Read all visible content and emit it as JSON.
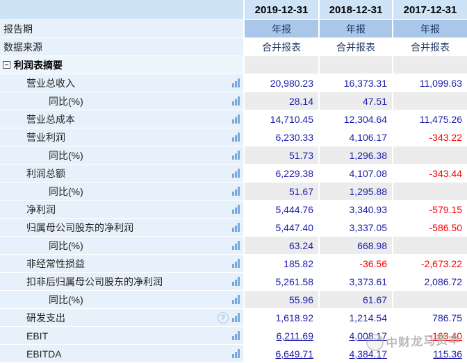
{
  "colors": {
    "header": "#cfe3f7",
    "period": "#a9c7e9",
    "label": "#e7f1fb",
    "labelsec": "#edf5fd",
    "gray": "#ececec",
    "navy": "#1c1caa",
    "red": "#fe0000",
    "dark": "#222222",
    "meta": "#1f3864",
    "icon": "#79a8da",
    "helpicon": "#a6c6e6"
  },
  "header": {
    "columns": [
      "2019-12-31",
      "2018-12-31",
      "2017-12-31"
    ]
  },
  "watermark": {
    "text": "中财龙马资本",
    "logo": "dragon-circle-logo"
  },
  "icons": {
    "bar": "bar-chart-icon",
    "help": "help-question-icon",
    "collapse": "collapse-minus-icon"
  },
  "rows": [
    {
      "id": "report-period",
      "type": "meta",
      "indent": 0,
      "label": "报告期",
      "cellClass": "blue",
      "values": [
        "年报",
        "年报",
        "年报"
      ]
    },
    {
      "id": "data-source",
      "type": "meta",
      "indent": 0,
      "label": "数据来源",
      "cellClass": "center",
      "values": [
        "合并报表",
        "合并报表",
        "合并报表"
      ]
    },
    {
      "id": "income-statement-summary",
      "type": "section",
      "label": "利润表摘要",
      "cellClass": "sec",
      "values": [
        "",
        "",
        ""
      ]
    },
    {
      "id": "total-operating-revenue",
      "type": "data",
      "indent": 1,
      "icon": true,
      "label": "营业总收入",
      "cellClass": "white",
      "values": [
        "20,980.23",
        "16,373.31",
        "11,099.63"
      ]
    },
    {
      "id": "yoy-total-operating-revenue",
      "type": "data",
      "indent": 2,
      "icon": true,
      "label": "同比(%)",
      "cellClass": "gray",
      "values": [
        "28.14",
        "47.51",
        ""
      ]
    },
    {
      "id": "total-operating-cost",
      "type": "data",
      "indent": 1,
      "icon": true,
      "label": "营业总成本",
      "cellClass": "white",
      "values": [
        "14,710.45",
        "12,304.64",
        "11,475.26"
      ]
    },
    {
      "id": "operating-profit",
      "type": "data",
      "indent": 1,
      "icon": true,
      "label": "营业利润",
      "cellClass": "white",
      "values": [
        "6,230.33",
        "4,106.17",
        "-343.22"
      ]
    },
    {
      "id": "yoy-operating-profit",
      "type": "data",
      "indent": 2,
      "icon": true,
      "label": "同比(%)",
      "cellClass": "gray",
      "values": [
        "51.73",
        "1,296.38",
        ""
      ]
    },
    {
      "id": "total-profit",
      "type": "data",
      "indent": 1,
      "icon": true,
      "label": "利润总额",
      "cellClass": "white",
      "values": [
        "6,229.38",
        "4,107.08",
        "-343.44"
      ]
    },
    {
      "id": "yoy-total-profit",
      "type": "data",
      "indent": 2,
      "icon": true,
      "label": "同比(%)",
      "cellClass": "gray",
      "values": [
        "51.67",
        "1,295.88",
        ""
      ]
    },
    {
      "id": "net-profit",
      "type": "data",
      "indent": 1,
      "icon": true,
      "label": "净利润",
      "cellClass": "white",
      "values": [
        "5,444.76",
        "3,340.93",
        "-579.15"
      ]
    },
    {
      "id": "net-profit-attributable-to-parent",
      "type": "data",
      "indent": 1,
      "icon": true,
      "label": "归属母公司股东的净利润",
      "cellClass": "white",
      "values": [
        "5,447.40",
        "3,337.05",
        "-586.50"
      ]
    },
    {
      "id": "yoy-net-profit-attributable",
      "type": "data",
      "indent": 2,
      "icon": true,
      "label": "同比(%)",
      "cellClass": "gray",
      "values": [
        "63.24",
        "668.98",
        ""
      ]
    },
    {
      "id": "non-recurring-items",
      "type": "data",
      "indent": 1,
      "icon": true,
      "label": "非经常性损益",
      "cellClass": "white",
      "values": [
        "185.82",
        "-36.56",
        "-2,673.22"
      ]
    },
    {
      "id": "net-profit-after-deducting-non-recurring",
      "type": "data",
      "indent": 1,
      "icon": true,
      "label": "扣非后归属母公司股东的净利润",
      "cellClass": "white",
      "values": [
        "5,261.58",
        "3,373.61",
        "2,086.72"
      ]
    },
    {
      "id": "yoy-deducted-net-profit",
      "type": "data",
      "indent": 2,
      "icon": true,
      "label": "同比(%)",
      "cellClass": "gray",
      "values": [
        "55.96",
        "61.67",
        ""
      ]
    },
    {
      "id": "rd-expense",
      "type": "data",
      "indent": 1,
      "icon": true,
      "help": true,
      "label": "研发支出",
      "cellClass": "white",
      "values": [
        "1,618.92",
        "1,214.54",
        "786.75"
      ]
    },
    {
      "id": "ebit",
      "type": "data",
      "indent": 1,
      "icon": true,
      "link": true,
      "label": "EBIT",
      "cellClass": "white",
      "values": [
        "6,211.69",
        "4,008.17",
        "-163.40"
      ]
    },
    {
      "id": "ebitda",
      "type": "data",
      "indent": 1,
      "icon": true,
      "link": true,
      "label": "EBITDA",
      "cellClass": "white",
      "values": [
        "6,649.71",
        "4,384.17",
        "115.36"
      ]
    }
  ]
}
